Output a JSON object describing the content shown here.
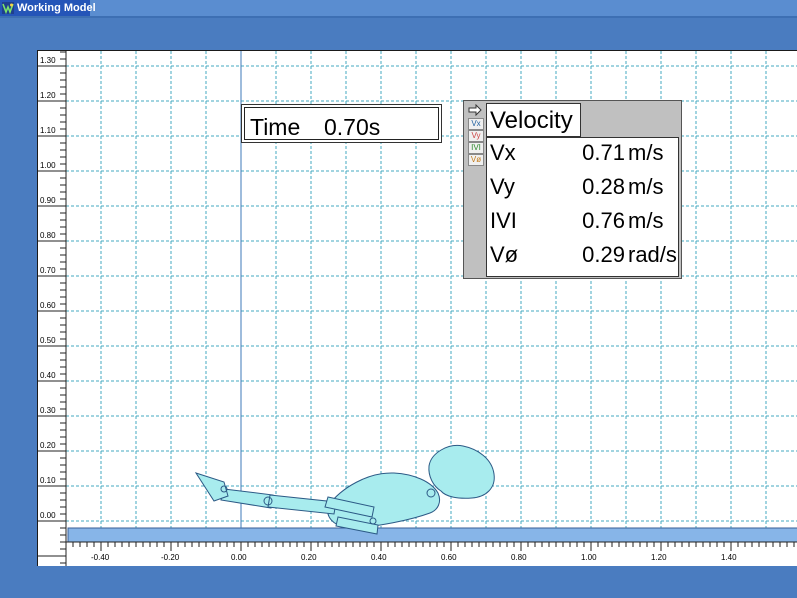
{
  "app": {
    "title": "Working Model",
    "icon": "working-model-logo-icon"
  },
  "workspace": {
    "y_axis_labels": [
      "1.30",
      "1.20",
      "1.10",
      "1.00",
      "0.90",
      "0.80",
      "0.70",
      "0.60",
      "0.50",
      "0.40",
      "0.30",
      "0.20",
      "0.10",
      "0.00"
    ],
    "x_axis_labels": [
      "-0.40",
      "-0.20",
      "0.00",
      "0.20",
      "0.40",
      "0.60",
      "0.80",
      "1.00",
      "1.20",
      "1.40"
    ],
    "ground_color": "#87b5e8",
    "body_color": "#a8ecee",
    "grid_color": "#43a9c0"
  },
  "time_meter": {
    "label": "Time",
    "value": "0.70s"
  },
  "velocity_meter": {
    "title": "Velocity",
    "side_buttons": [
      "Vx",
      "Vy",
      "IVI",
      "Vø"
    ],
    "rows": [
      {
        "name": "Vx",
        "value": "0.71",
        "unit": "m/s"
      },
      {
        "name": "Vy",
        "value": "0.28",
        "unit": "m/s"
      },
      {
        "name": "IVI",
        "value": "0.76",
        "unit": "m/s"
      },
      {
        "name": "Vø",
        "value": "0.29",
        "unit": "rad/s"
      }
    ]
  }
}
